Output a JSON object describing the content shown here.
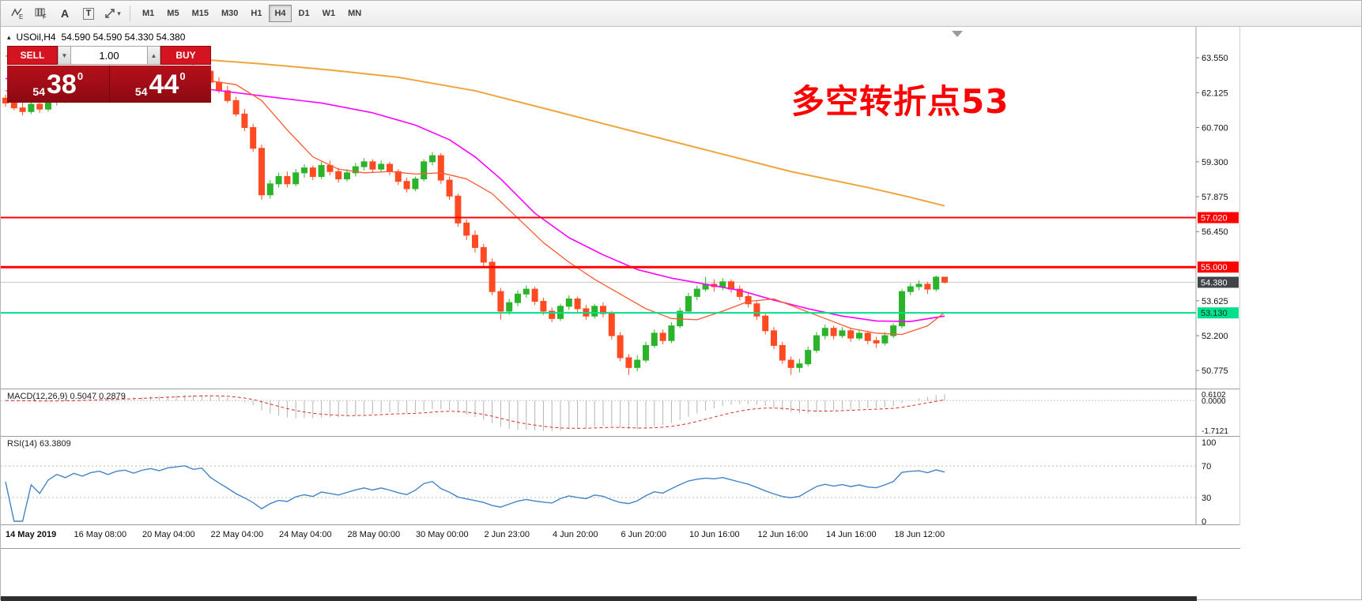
{
  "colors": {
    "panel_red": "#b5101b",
    "panel_red_dark": "#8c0a12",
    "buy_sell_red": "#d41420",
    "up_green": "#2bb32b",
    "down_red": "#ff4a22",
    "hline_red": "#ff0000",
    "hline_green": "#00e08c",
    "price_badge_bg": "#3f4447",
    "macd_bar_gray": "#b4b4b4",
    "macd_signal_red": "#dd2c2c",
    "rsi_blue": "#4284c8",
    "annotation_red": "#ff0000"
  },
  "toolbar": {
    "icons": [
      {
        "label": "E"
      },
      {
        "label": "F"
      },
      {
        "label": "A"
      },
      {
        "label": "T"
      },
      {
        "label": ""
      }
    ],
    "caret": "▾",
    "timeframes": [
      "M1",
      "M5",
      "M15",
      "M30",
      "H1",
      "H4",
      "D1",
      "W1",
      "MN"
    ],
    "active_timeframe": "H4"
  },
  "symbol_bar": {
    "collapse_icon": "▴",
    "symbol": "USOil,H4",
    "ohlc": "54.590 54.590 54.330 54.380"
  },
  "trade_panel": {
    "sell_label": "SELL",
    "buy_label": "BUY",
    "volume": "1.00",
    "stepper_down": "▼",
    "stepper_up": "▲",
    "sell_price": {
      "main": "54",
      "big": "38",
      "sup": "0"
    },
    "buy_price": {
      "main": "54",
      "big": "44",
      "sup": "0"
    }
  },
  "annotation": {
    "text": "多空转折点53"
  },
  "chart_data": {
    "type": "candlestick",
    "title": "USOil,H4",
    "timeframe": "H4",
    "ylim": [
      50.04,
      64.81
    ],
    "y_ticks": [
      "63.550",
      "62.125",
      "60.700",
      "59.300",
      "57.875",
      "56.450",
      "53.625",
      "52.200",
      "50.775"
    ],
    "up_color": "#2bb32b",
    "down_color": "#ff4a22",
    "candles": [
      [
        61.9,
        62.05,
        61.55,
        61.7
      ],
      [
        61.7,
        61.95,
        61.4,
        61.5
      ],
      [
        61.5,
        61.75,
        61.2,
        61.35
      ],
      [
        61.35,
        61.8,
        61.25,
        61.65
      ],
      [
        61.65,
        61.85,
        61.3,
        61.45
      ],
      [
        61.45,
        61.9,
        61.35,
        61.75
      ],
      [
        61.75,
        62.05,
        61.6,
        61.95
      ],
      [
        61.95,
        62.15,
        61.7,
        61.85
      ],
      [
        61.85,
        62.2,
        61.75,
        62.05
      ],
      [
        62.05,
        62.25,
        61.85,
        61.95
      ],
      [
        61.95,
        62.3,
        61.85,
        62.15
      ],
      [
        62.15,
        62.4,
        62.0,
        62.25
      ],
      [
        62.25,
        62.45,
        62.05,
        62.1
      ],
      [
        62.1,
        62.5,
        62.0,
        62.35
      ],
      [
        62.35,
        62.6,
        62.2,
        62.45
      ],
      [
        62.45,
        62.65,
        62.25,
        62.3
      ],
      [
        62.3,
        62.7,
        62.2,
        62.55
      ],
      [
        62.55,
        62.85,
        62.4,
        62.7
      ],
      [
        62.7,
        62.95,
        62.55,
        62.6
      ],
      [
        62.6,
        63.0,
        62.5,
        62.85
      ],
      [
        62.85,
        63.1,
        62.7,
        62.95
      ],
      [
        62.95,
        63.2,
        62.8,
        63.05
      ],
      [
        63.05,
        63.25,
        62.85,
        62.9
      ],
      [
        62.9,
        63.15,
        62.7,
        63.0
      ],
      [
        63.0,
        63.05,
        62.45,
        62.55
      ],
      [
        62.55,
        62.75,
        62.1,
        62.2
      ],
      [
        62.2,
        62.4,
        61.7,
        61.8
      ],
      [
        61.8,
        61.95,
        61.15,
        61.25
      ],
      [
        61.25,
        61.45,
        60.55,
        60.7
      ],
      [
        60.7,
        60.85,
        59.7,
        59.85
      ],
      [
        59.85,
        60.0,
        57.75,
        57.95
      ],
      [
        57.95,
        58.55,
        57.8,
        58.4
      ],
      [
        58.4,
        58.85,
        58.25,
        58.7
      ],
      [
        58.7,
        58.9,
        58.25,
        58.4
      ],
      [
        58.4,
        59.0,
        58.3,
        58.85
      ],
      [
        58.85,
        59.2,
        58.65,
        59.05
      ],
      [
        59.05,
        59.15,
        58.55,
        58.7
      ],
      [
        58.7,
        59.3,
        58.6,
        59.15
      ],
      [
        59.15,
        59.35,
        58.75,
        58.9
      ],
      [
        58.9,
        59.05,
        58.45,
        58.6
      ],
      [
        58.6,
        59.0,
        58.5,
        58.85
      ],
      [
        58.85,
        59.25,
        58.7,
        59.1
      ],
      [
        59.1,
        59.45,
        58.95,
        59.3
      ],
      [
        59.3,
        59.4,
        58.85,
        59.0
      ],
      [
        59.0,
        59.35,
        58.9,
        59.2
      ],
      [
        59.2,
        59.3,
        58.75,
        58.9
      ],
      [
        58.9,
        59.0,
        58.35,
        58.5
      ],
      [
        58.5,
        58.65,
        58.05,
        58.2
      ],
      [
        58.2,
        58.7,
        58.1,
        58.6
      ],
      [
        58.6,
        59.4,
        58.5,
        59.3
      ],
      [
        59.3,
        59.7,
        59.15,
        59.55
      ],
      [
        59.55,
        59.65,
        58.4,
        58.55
      ],
      [
        58.55,
        58.7,
        57.75,
        57.9
      ],
      [
        57.9,
        58.0,
        56.65,
        56.8
      ],
      [
        56.8,
        56.95,
        56.1,
        56.3
      ],
      [
        56.3,
        56.5,
        55.6,
        55.8
      ],
      [
        55.8,
        55.95,
        55.0,
        55.2
      ],
      [
        55.2,
        55.35,
        53.85,
        54.0
      ],
      [
        54.0,
        54.15,
        52.85,
        53.2
      ],
      [
        53.2,
        53.7,
        53.05,
        53.55
      ],
      [
        53.55,
        54.05,
        53.4,
        53.9
      ],
      [
        53.9,
        54.25,
        53.75,
        54.1
      ],
      [
        54.1,
        54.2,
        53.45,
        53.6
      ],
      [
        53.6,
        53.75,
        53.05,
        53.2
      ],
      [
        53.2,
        53.35,
        52.75,
        52.9
      ],
      [
        52.9,
        53.5,
        52.8,
        53.4
      ],
      [
        53.4,
        53.85,
        53.25,
        53.7
      ],
      [
        53.7,
        53.8,
        53.15,
        53.3
      ],
      [
        53.3,
        53.45,
        52.85,
        53.0
      ],
      [
        53.0,
        53.5,
        52.9,
        53.4
      ],
      [
        53.4,
        53.55,
        52.95,
        53.1
      ],
      [
        53.1,
        53.2,
        52.05,
        52.2
      ],
      [
        52.2,
        52.35,
        51.15,
        51.3
      ],
      [
        51.3,
        51.45,
        50.6,
        50.9
      ],
      [
        50.9,
        51.4,
        50.75,
        51.2
      ],
      [
        51.2,
        51.95,
        51.1,
        51.8
      ],
      [
        51.8,
        52.45,
        51.7,
        52.3
      ],
      [
        52.3,
        52.45,
        51.85,
        52.0
      ],
      [
        52.0,
        52.75,
        51.9,
        52.6
      ],
      [
        52.6,
        53.35,
        52.5,
        53.2
      ],
      [
        53.2,
        53.95,
        53.1,
        53.8
      ],
      [
        53.8,
        54.25,
        53.65,
        54.1
      ],
      [
        54.1,
        54.6,
        54.0,
        54.3
      ],
      [
        54.3,
        54.5,
        54.0,
        54.2
      ],
      [
        54.2,
        54.55,
        54.05,
        54.4
      ],
      [
        54.4,
        54.5,
        53.95,
        54.1
      ],
      [
        54.1,
        54.25,
        53.65,
        53.8
      ],
      [
        53.8,
        53.95,
        53.35,
        53.5
      ],
      [
        53.5,
        53.6,
        52.85,
        53.0
      ],
      [
        53.0,
        53.15,
        52.25,
        52.4
      ],
      [
        52.4,
        52.55,
        51.65,
        51.8
      ],
      [
        51.8,
        51.95,
        51.05,
        51.2
      ],
      [
        51.2,
        51.35,
        50.6,
        50.9
      ],
      [
        50.9,
        51.25,
        50.7,
        51.05
      ],
      [
        51.05,
        51.75,
        50.95,
        51.6
      ],
      [
        51.6,
        52.35,
        51.5,
        52.2
      ],
      [
        52.2,
        52.65,
        52.05,
        52.5
      ],
      [
        52.5,
        52.6,
        52.05,
        52.2
      ],
      [
        52.2,
        52.55,
        52.1,
        52.4
      ],
      [
        52.4,
        52.5,
        51.95,
        52.1
      ],
      [
        52.1,
        52.45,
        52.0,
        52.3
      ],
      [
        52.3,
        52.4,
        51.85,
        52.0
      ],
      [
        52.0,
        52.15,
        51.7,
        51.9
      ],
      [
        51.9,
        52.35,
        51.8,
        52.2
      ],
      [
        52.2,
        52.7,
        52.1,
        52.6
      ],
      [
        52.6,
        54.1,
        52.5,
        54.0
      ],
      [
        54.0,
        54.35,
        53.85,
        54.2
      ],
      [
        54.2,
        54.45,
        54.05,
        54.3
      ],
      [
        54.3,
        54.4,
        53.9,
        54.1
      ],
      [
        54.1,
        54.65,
        54.0,
        54.59
      ],
      [
        54.59,
        54.59,
        54.33,
        54.38
      ]
    ],
    "ma_lines": [
      {
        "name": "ma-slow-orange",
        "color": "#f0a43c",
        "width": 2,
        "points": [
          [
            0,
            63.62
          ],
          [
            8,
            63.58
          ],
          [
            16,
            63.52
          ],
          [
            24,
            63.45
          ],
          [
            30,
            63.3
          ],
          [
            38,
            63.05
          ],
          [
            46,
            62.75
          ],
          [
            55,
            62.2
          ],
          [
            64,
            61.4
          ],
          [
            74,
            60.5
          ],
          [
            83,
            59.7
          ],
          [
            92,
            58.9
          ],
          [
            101,
            58.25
          ],
          [
            106,
            57.85
          ],
          [
            110,
            57.5
          ]
        ]
      },
      {
        "name": "ma-medium-magenta",
        "color": "#ff00ff",
        "width": 1.6,
        "points": [
          [
            0,
            62.7
          ],
          [
            8,
            62.55
          ],
          [
            16,
            62.4
          ],
          [
            24,
            62.25
          ],
          [
            31,
            61.95
          ],
          [
            37,
            61.7
          ],
          [
            43,
            61.3
          ],
          [
            48,
            60.8
          ],
          [
            52,
            60.2
          ],
          [
            55,
            59.5
          ],
          [
            58,
            58.6
          ],
          [
            62,
            57.2
          ],
          [
            66,
            56.2
          ],
          [
            70,
            55.5
          ],
          [
            74,
            54.9
          ],
          [
            78,
            54.55
          ],
          [
            82,
            54.3
          ],
          [
            86,
            54.05
          ],
          [
            90,
            53.65
          ],
          [
            94,
            53.3
          ],
          [
            98,
            53.0
          ],
          [
            102,
            52.8
          ],
          [
            106,
            52.78
          ],
          [
            110,
            53.0
          ]
        ]
      },
      {
        "name": "ma-fast-red",
        "color": "#ff5a30",
        "width": 1.3,
        "points": [
          [
            0,
            62.2
          ],
          [
            6,
            61.8
          ],
          [
            12,
            62.0
          ],
          [
            18,
            62.3
          ],
          [
            24,
            62.6
          ],
          [
            27,
            62.45
          ],
          [
            30,
            61.8
          ],
          [
            33,
            60.6
          ],
          [
            36,
            59.5
          ],
          [
            39,
            59.0
          ],
          [
            42,
            58.85
          ],
          [
            45,
            58.9
          ],
          [
            48,
            58.8
          ],
          [
            51,
            58.85
          ],
          [
            54,
            58.6
          ],
          [
            57,
            58.0
          ],
          [
            60,
            57.0
          ],
          [
            63,
            56.0
          ],
          [
            66,
            55.2
          ],
          [
            69,
            54.5
          ],
          [
            72,
            53.9
          ],
          [
            75,
            53.3
          ],
          [
            78,
            52.9
          ],
          [
            81,
            52.85
          ],
          [
            84,
            53.2
          ],
          [
            87,
            53.6
          ],
          [
            90,
            53.7
          ],
          [
            93,
            53.3
          ],
          [
            96,
            52.9
          ],
          [
            99,
            52.5
          ],
          [
            102,
            52.3
          ],
          [
            105,
            52.25
          ],
          [
            108,
            52.6
          ],
          [
            110,
            53.15
          ]
        ]
      }
    ],
    "hlines": [
      {
        "price": 57.02,
        "label": "57.020",
        "color": "#ff0000",
        "width": 2,
        "text_color": "#ffffff"
      },
      {
        "price": 55.0,
        "label": "55.000",
        "color": "#ff0000",
        "width": 3,
        "text_color": "#ffffff"
      },
      {
        "price": 53.13,
        "label": "53.130",
        "color": "#00e08c",
        "width": 2,
        "text_color": "#00391f"
      }
    ],
    "current_price": {
      "value": 54.38,
      "label": "54.380"
    },
    "macd": {
      "title": "MACD(12,26,9) 0.5047 0.2879",
      "params": [
        12,
        26,
        9
      ],
      "values_shown": [
        0.5047,
        0.2879
      ],
      "axis_labels": [
        "0.6102",
        "0.0000",
        "-1.7121"
      ]
    },
    "rsi": {
      "title": "RSI(14) 63.3809",
      "period": 14,
      "value_shown": 63.3809,
      "levels": [
        100,
        70,
        30,
        0
      ]
    },
    "x_labels": [
      "14 May 2019",
      "16 May 08:00",
      "20 May 04:00",
      "22 May 04:00",
      "24 May 04:00",
      "28 May 00:00",
      "30 May 00:00",
      "2 Jun 23:00",
      "4 Jun 20:00",
      "6 Jun 20:00",
      "10 Jun 16:00",
      "12 Jun 16:00",
      "14 Jun 16:00",
      "18 Jun 12:00"
    ]
  }
}
